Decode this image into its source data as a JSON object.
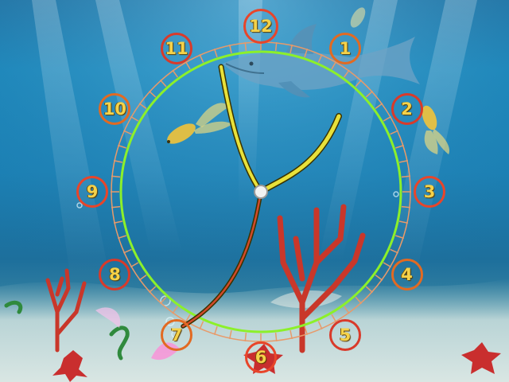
{
  "window": {
    "title": ""
  },
  "clock": {
    "numerals": [
      {
        "value": "12",
        "angle": 0
      },
      {
        "value": "1",
        "angle": 30
      },
      {
        "value": "2",
        "angle": 60
      },
      {
        "value": "3",
        "angle": 90
      },
      {
        "value": "4",
        "angle": 120
      },
      {
        "value": "5",
        "angle": 150
      },
      {
        "value": "6",
        "angle": 180
      },
      {
        "value": "7",
        "angle": 210
      },
      {
        "value": "8",
        "angle": 240
      },
      {
        "value": "9",
        "angle": 270
      },
      {
        "value": "10",
        "angle": 300
      },
      {
        "value": "11",
        "angle": 330
      }
    ],
    "time_shown": {
      "hour_hand": "1:10",
      "minute_hand": "58",
      "second_hand": "35"
    },
    "colors": {
      "ring": "#8cf02a",
      "ticks": "#e89a6a",
      "numeral_ring": "#e8452a",
      "numeral_text": "#f4d24a",
      "hands": "#e8e13a",
      "second_hand": "#d24a2a"
    }
  },
  "decor": {
    "icons": [
      "shark-icon",
      "goldfish-icon",
      "coral-icon",
      "starfish-icon",
      "seaweed-icon",
      "bubble-icon"
    ]
  }
}
